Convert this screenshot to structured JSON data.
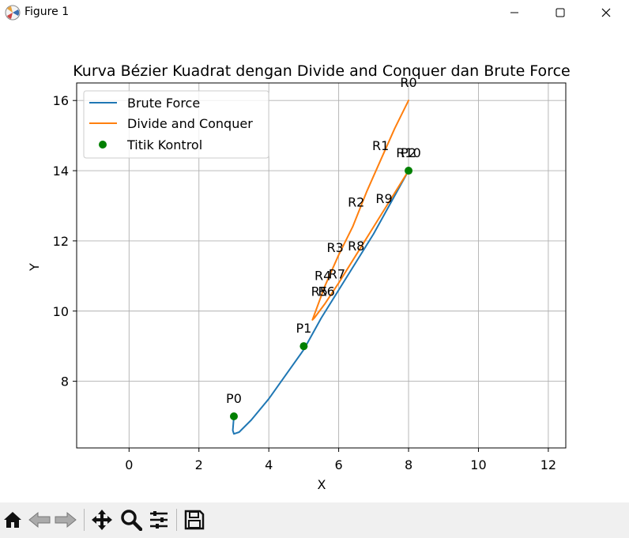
{
  "window": {
    "title": "Figure 1",
    "icons": [
      "matplotlib-icon",
      "minimize-icon",
      "maximize-icon",
      "close-icon"
    ]
  },
  "toolbar": {
    "buttons": [
      "home-icon",
      "back-icon",
      "forward-icon",
      "pan-icon",
      "zoom-icon",
      "configure-subplots-icon",
      "save-icon"
    ]
  },
  "colors": {
    "brute_force": "#1f77b4",
    "divide_conquer": "#ff7f0e",
    "control_points": "#008000",
    "grid": "#b0b0b0"
  },
  "chart_data": {
    "type": "line",
    "title": "Kurva Bézier Kuadrat dengan Divide and Conquer dan Brute Force",
    "xlabel": "X",
    "ylabel": "Y",
    "xlim": [
      -1.5,
      12.5
    ],
    "ylim": [
      6.1,
      16.5
    ],
    "xticks": [
      0,
      2,
      4,
      6,
      8,
      10,
      12
    ],
    "yticks": [
      8,
      10,
      12,
      14,
      16
    ],
    "xtick_labels": [
      "0",
      "2",
      "4",
      "6",
      "8",
      "10",
      "12"
    ],
    "ytick_labels": [
      "8",
      "10",
      "12",
      "14",
      "16"
    ],
    "grid": true,
    "legend_position": "upper-left",
    "series": [
      {
        "name": "Brute Force",
        "type": "line",
        "points": [
          [
            3,
            7
          ],
          [
            2.97,
            6.6
          ],
          [
            3.0,
            6.5
          ],
          [
            3.15,
            6.55
          ],
          [
            3.5,
            6.9
          ],
          [
            4.0,
            7.5
          ],
          [
            4.5,
            8.2
          ],
          [
            5.0,
            8.9
          ],
          [
            5.5,
            9.8
          ],
          [
            6.0,
            10.6
          ],
          [
            6.5,
            11.4
          ],
          [
            7.0,
            12.2
          ],
          [
            7.5,
            13.1
          ],
          [
            8,
            14
          ]
        ]
      },
      {
        "name": "Divide and Conquer",
        "type": "line",
        "points": [
          [
            8,
            16
          ],
          [
            7.6,
            15.2
          ],
          [
            7.2,
            14.3
          ],
          [
            6.8,
            13.4
          ],
          [
            6.4,
            12.4
          ],
          [
            6.0,
            11.6
          ],
          [
            5.6,
            10.7
          ],
          [
            5.25,
            9.75
          ],
          [
            5.3,
            9.8
          ],
          [
            5.6,
            10.2
          ],
          [
            6.0,
            10.8
          ],
          [
            6.5,
            11.6
          ],
          [
            7.0,
            12.4
          ],
          [
            7.5,
            13.2
          ],
          [
            8,
            14
          ]
        ]
      },
      {
        "name": "Titik Kontrol",
        "type": "scatter",
        "points": [
          [
            3,
            7
          ],
          [
            5,
            9
          ],
          [
            8,
            14
          ]
        ]
      }
    ],
    "annotations": [
      {
        "text": "P0",
        "x": 3,
        "y": 7
      },
      {
        "text": "P1",
        "x": 5,
        "y": 9
      },
      {
        "text": "P2",
        "x": 8,
        "y": 14
      },
      {
        "text": "R10",
        "x": 8,
        "y": 14
      },
      {
        "text": "R0",
        "x": 8,
        "y": 16
      },
      {
        "text": "R1",
        "x": 7.2,
        "y": 14.2
      },
      {
        "text": "R2",
        "x": 6.5,
        "y": 12.6
      },
      {
        "text": "R3",
        "x": 5.9,
        "y": 11.3
      },
      {
        "text": "R4",
        "x": 5.55,
        "y": 10.5
      },
      {
        "text": "R5",
        "x": 5.45,
        "y": 10.05
      },
      {
        "text": "R6",
        "x": 5.65,
        "y": 10.05
      },
      {
        "text": "R7",
        "x": 5.95,
        "y": 10.55
      },
      {
        "text": "R8",
        "x": 6.5,
        "y": 11.35
      },
      {
        "text": "R9",
        "x": 7.3,
        "y": 12.7
      }
    ]
  }
}
